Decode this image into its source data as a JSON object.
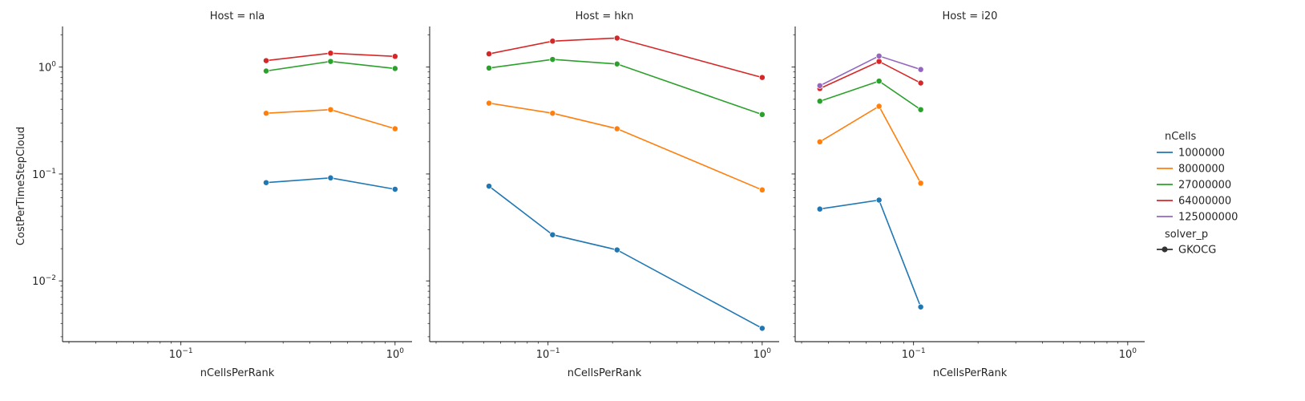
{
  "chart_data": {
    "type": "line",
    "x_scale": "log",
    "y_scale": "log",
    "xlabel": "nCellsPerRank",
    "ylabel": "CostPerTimeStepCloud",
    "xlim": [
      0.028,
      1.2
    ],
    "ylim": [
      0.0027,
      2.4
    ],
    "x_ticks": [
      0.1,
      1
    ],
    "x_tick_labels": [
      "10^-1",
      "10^0"
    ],
    "y_ticks": [
      0.01,
      0.1,
      1
    ],
    "y_tick_labels": [
      "10^-2",
      "10^-1",
      "10^0"
    ],
    "grid": false,
    "marker": "circle",
    "legend": {
      "placement": "right",
      "hue_title": "nCells",
      "style_title": "solver_p",
      "style_entries": [
        "GKOCG"
      ],
      "entries": [
        {
          "name": "1000000",
          "color": "#1f77b4"
        },
        {
          "name": "8000000",
          "color": "#ff7f0e"
        },
        {
          "name": "27000000",
          "color": "#2ca02c"
        },
        {
          "name": "64000000",
          "color": "#d62728"
        },
        {
          "name": "125000000",
          "color": "#9467bd"
        }
      ]
    },
    "panels": [
      {
        "title": "Host = nla",
        "series": [
          {
            "name": "1000000",
            "color": "#1f77b4",
            "x": [
              0.25,
              0.5,
              1.0
            ],
            "y": [
              0.083,
              0.092,
              0.072
            ]
          },
          {
            "name": "8000000",
            "color": "#ff7f0e",
            "x": [
              0.25,
              0.5,
              1.0
            ],
            "y": [
              0.37,
              0.4,
              0.265
            ]
          },
          {
            "name": "27000000",
            "color": "#2ca02c",
            "x": [
              0.25,
              0.5,
              1.0
            ],
            "y": [
              0.92,
              1.13,
              0.97
            ]
          },
          {
            "name": "64000000",
            "color": "#d62728",
            "x": [
              0.25,
              0.5,
              1.0
            ],
            "y": [
              1.15,
              1.35,
              1.26
            ]
          }
        ]
      },
      {
        "title": "Host = hkn",
        "series": [
          {
            "name": "1000000",
            "color": "#1f77b4",
            "x": [
              0.053,
              0.105,
              0.21,
              1.0
            ],
            "y": [
              0.077,
              0.027,
              0.0195,
              0.0036
            ]
          },
          {
            "name": "8000000",
            "color": "#ff7f0e",
            "x": [
              0.053,
              0.105,
              0.21,
              1.0
            ],
            "y": [
              0.46,
              0.37,
              0.265,
              0.071
            ]
          },
          {
            "name": "27000000",
            "color": "#2ca02c",
            "x": [
              0.053,
              0.105,
              0.21,
              1.0
            ],
            "y": [
              0.98,
              1.18,
              1.07,
              0.36
            ]
          },
          {
            "name": "64000000",
            "color": "#d62728",
            "x": [
              0.053,
              0.105,
              0.21,
              1.0
            ],
            "y": [
              1.33,
              1.75,
              1.87,
              0.8
            ]
          }
        ]
      },
      {
        "title": "Host = i20",
        "series": [
          {
            "name": "1000000",
            "color": "#1f77b4",
            "x": [
              0.0365,
              0.069,
              0.108
            ],
            "y": [
              0.047,
              0.057,
              0.0057
            ]
          },
          {
            "name": "8000000",
            "color": "#ff7f0e",
            "x": [
              0.0365,
              0.069,
              0.108
            ],
            "y": [
              0.2,
              0.43,
              0.082
            ]
          },
          {
            "name": "27000000",
            "color": "#2ca02c",
            "x": [
              0.0365,
              0.069,
              0.108
            ],
            "y": [
              0.48,
              0.74,
              0.4
            ]
          },
          {
            "name": "64000000",
            "color": "#d62728",
            "x": [
              0.0365,
              0.069,
              0.108
            ],
            "y": [
              0.63,
              1.13,
              0.71
            ]
          },
          {
            "name": "125000000",
            "color": "#9467bd",
            "x": [
              0.0365,
              0.069,
              0.108
            ],
            "y": [
              0.67,
              1.27,
              0.95
            ]
          }
        ]
      }
    ]
  }
}
